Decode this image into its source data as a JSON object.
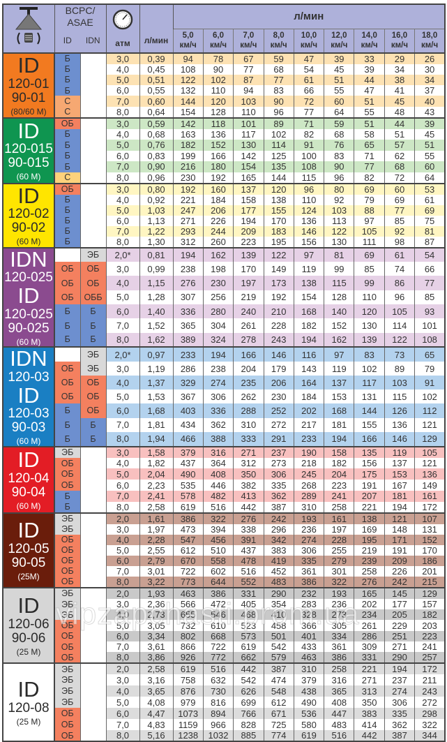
{
  "header": {
    "bcpc": "BCPC/",
    "asae": "ASAE",
    "id_col": "ID",
    "idn_col": "IDN",
    "atm": "атм",
    "lmin": "л/мин",
    "flow_title": "л/мин",
    "speeds": [
      "5,0",
      "6,0",
      "7,0",
      "8,0",
      "10,0",
      "12,0",
      "14,0",
      "16,0",
      "18,0"
    ],
    "speed_unit": "км/ч",
    "nozzle_icon": "nozzle-icon",
    "gauge_icon": "pressure-gauge-icon"
  },
  "class_colors": {
    "Б": "#6d8fcf",
    "С": "#f6a872",
    "ОБ": "#f4805f",
    "ОББ": "#f4805f",
    "ЭБ": "#d9d9d9",
    "": "#ffffff"
  },
  "groups": [
    {
      "color": "#f27a20",
      "tint": "#fde2b3",
      "text": "#2a2a2a",
      "c_color": "#f6a872",
      "label": [
        {
          "t": "ID",
          "s": "lg"
        },
        {
          "t": "120-01",
          "s": "md"
        },
        {
          "t": "90-01",
          "s": "md"
        },
        {
          "t": "(80/60 M)",
          "s": "sm"
        }
      ],
      "rows": [
        [
          "Б",
          "",
          "3,0",
          "0,39",
          94,
          78,
          67,
          59,
          47,
          39,
          33,
          29,
          26
        ],
        [
          "Б",
          "",
          "4,0",
          "0,45",
          108,
          90,
          77,
          68,
          54,
          45,
          39,
          34,
          30
        ],
        [
          "Б",
          "",
          "5,0",
          "0,51",
          122,
          102,
          87,
          77,
          61,
          51,
          44,
          38,
          34
        ],
        [
          "Б",
          "",
          "6,0",
          "0,55",
          132,
          110,
          94,
          83,
          66,
          55,
          47,
          41,
          37
        ],
        [
          "С",
          "",
          "7,0",
          "0,60",
          144,
          120,
          103,
          90,
          72,
          60,
          51,
          45,
          40
        ],
        [
          "С",
          "",
          "8,0",
          "0,64",
          154,
          128,
          110,
          96,
          77,
          64,
          55,
          48,
          43
        ]
      ]
    },
    {
      "color": "#0f9550",
      "tint": "#cde7c5",
      "text": "#ffffff",
      "c_color": "#fdd27c",
      "label": [
        {
          "t": "ID",
          "s": "lg"
        },
        {
          "t": "120-015",
          "s": "md"
        },
        {
          "t": "90-015",
          "s": "md"
        },
        {
          "t": "(60 M)",
          "s": "sm"
        }
      ],
      "rows": [
        [
          "ОБ",
          "",
          "3,0",
          "0,59",
          142,
          118,
          101,
          89,
          71,
          59,
          51,
          44,
          39
        ],
        [
          "Б",
          "",
          "4,0",
          "0,68",
          163,
          136,
          117,
          102,
          82,
          68,
          58,
          51,
          45
        ],
        [
          "Б",
          "",
          "5,0",
          "0,76",
          182,
          152,
          130,
          114,
          91,
          76,
          65,
          57,
          51
        ],
        [
          "Б",
          "",
          "6,0",
          "0,83",
          199,
          166,
          142,
          125,
          100,
          83,
          71,
          62,
          55
        ],
        [
          "Б",
          "",
          "7,0",
          "0,90",
          216,
          180,
          154,
          135,
          108,
          90,
          77,
          68,
          60
        ],
        [
          "С",
          "",
          "8,0",
          "0,96",
          230,
          192,
          165,
          144,
          115,
          96,
          82,
          72,
          64
        ]
      ]
    },
    {
      "color": "#ffe500",
      "tint": "#fff6c2",
      "text": "#2a2a2a",
      "label": [
        {
          "t": "ID",
          "s": "lg"
        },
        {
          "t": "120-02",
          "s": "md"
        },
        {
          "t": "90-02",
          "s": "md"
        },
        {
          "t": "(60 M)",
          "s": "sm"
        }
      ],
      "rows": [
        [
          "ОБ",
          "",
          "3,0",
          "0,80",
          192,
          160,
          137,
          120,
          96,
          80,
          69,
          60,
          53
        ],
        [
          "Б",
          "",
          "4,0",
          "0,92",
          221,
          184,
          158,
          138,
          110,
          92,
          79,
          69,
          61
        ],
        [
          "Б",
          "",
          "5,0",
          "1,03",
          247,
          206,
          177,
          155,
          124,
          103,
          88,
          77,
          69
        ],
        [
          "Б",
          "",
          "6,0",
          "1,13",
          271,
          226,
          194,
          170,
          136,
          113,
          97,
          85,
          75
        ],
        [
          "Б",
          "",
          "7,0",
          "1,22",
          293,
          244,
          209,
          183,
          146,
          122,
          105,
          92,
          81
        ],
        [
          "Б",
          "",
          "8,0",
          "1,30",
          312,
          260,
          223,
          195,
          156,
          130,
          111,
          98,
          87
        ]
      ]
    },
    {
      "color": "#8b4b8f",
      "tint": "#e6d1e6",
      "text": "#ffffff",
      "rowh": 18.5,
      "label": [
        {
          "t": "IDN",
          "s": "lg"
        },
        {
          "t": "120-025",
          "s": "md"
        },
        {
          "t": "ID",
          "s": "lg"
        },
        {
          "t": "120-025",
          "s": "md"
        },
        {
          "t": "90-025",
          "s": "md"
        },
        {
          "t": "(60 M)",
          "s": "sm"
        }
      ],
      "rows": [
        [
          "",
          "ЭБ",
          "2,0*",
          "0,81",
          194,
          162,
          139,
          122,
          97,
          81,
          69,
          61,
          54
        ],
        [
          "ОБ",
          "ОБ",
          "3,0",
          "0,99",
          238,
          198,
          170,
          149,
          119,
          99,
          85,
          74,
          66
        ],
        [
          "ОБ",
          "ОБ",
          "4,0",
          "1,15",
          276,
          230,
          197,
          173,
          138,
          115,
          99,
          86,
          77
        ],
        [
          "ОБ",
          "ОББ",
          "5,0",
          "1,28",
          307,
          256,
          219,
          192,
          154,
          128,
          110,
          96,
          85
        ],
        [
          "Б",
          "Б",
          "6,0",
          "1,40",
          336,
          280,
          240,
          210,
          168,
          140,
          120,
          105,
          93
        ],
        [
          "Б",
          "Б",
          "7,0",
          "1,52",
          365,
          304,
          261,
          228,
          182,
          152,
          130,
          114,
          101
        ],
        [
          "Б",
          "Б",
          "8,0",
          "1,62",
          389,
          324,
          278,
          243,
          194,
          162,
          139,
          122,
          108
        ]
      ]
    },
    {
      "color": "#1a7fc3",
      "tint": "#b3d2ee",
      "text": "#ffffff",
      "label": [
        {
          "t": "IDN",
          "s": "lg"
        },
        {
          "t": "120-03",
          "s": "md"
        },
        {
          "t": "ID",
          "s": "lg"
        },
        {
          "t": "120-03",
          "s": "md"
        },
        {
          "t": "90-03",
          "s": "md"
        },
        {
          "t": "(60 M)",
          "s": "sm"
        }
      ],
      "rows": [
        [
          "",
          "ЭБ",
          "2,0*",
          "0,97",
          233,
          194,
          166,
          146,
          116,
          97,
          83,
          73,
          65
        ],
        [
          "ОБ",
          "ЭБ",
          "3,0",
          "1,19",
          286,
          238,
          204,
          179,
          143,
          119,
          102,
          89,
          79
        ],
        [
          "ОБ",
          "ОБ",
          "4,0",
          "1,37",
          329,
          274,
          235,
          206,
          164,
          137,
          117,
          103,
          91
        ],
        [
          "ОБ",
          "ОБ",
          "5,0",
          "1,53",
          367,
          306,
          262,
          230,
          184,
          153,
          131,
          115,
          102
        ],
        [
          "Б",
          "ОБ",
          "6,0",
          "1,68",
          403,
          336,
          288,
          252,
          202,
          168,
          144,
          126,
          112
        ],
        [
          "Б",
          "Б",
          "7,0",
          "1,81",
          434,
          362,
          310,
          272,
          217,
          181,
          155,
          136,
          121
        ],
        [
          "Б",
          "Б",
          "8,0",
          "1,94",
          466,
          388,
          333,
          291,
          233,
          194,
          166,
          146,
          129
        ]
      ]
    },
    {
      "color": "#e31d25",
      "tint": "#f8c0bf",
      "text": "#ffffff",
      "label": [
        {
          "t": "ID",
          "s": "lg"
        },
        {
          "t": "120-04",
          "s": "md"
        },
        {
          "t": "90-04",
          "s": "md"
        },
        {
          "t": "(60 M)",
          "s": "sm"
        }
      ],
      "rows": [
        [
          "ЭБ",
          "",
          "3,0",
          "1,58",
          379,
          316,
          271,
          237,
          190,
          158,
          135,
          119,
          105
        ],
        [
          "ОБ",
          "",
          "4,0",
          "1,82",
          437,
          364,
          312,
          273,
          218,
          182,
          156,
          137,
          121
        ],
        [
          "ОБ",
          "",
          "5,0",
          "2,04",
          490,
          408,
          350,
          306,
          245,
          204,
          175,
          153,
          136
        ],
        [
          "ОБ",
          "",
          "6,0",
          "2,23",
          535,
          446,
          382,
          335,
          268,
          223,
          191,
          167,
          149
        ],
        [
          "Б",
          "",
          "7,0",
          "2,41",
          578,
          482,
          413,
          362,
          289,
          241,
          207,
          181,
          161
        ],
        [
          "Б",
          "",
          "8,0",
          "2,58",
          619,
          516,
          442,
          387,
          310,
          258,
          221,
          194,
          172
        ]
      ]
    },
    {
      "color": "#6a1d0b",
      "tint": "#c9a092",
      "text": "#ffffff",
      "label": [
        {
          "t": "ID",
          "s": "lg"
        },
        {
          "t": "120-05",
          "s": "md"
        },
        {
          "t": "90-05",
          "s": "md"
        },
        {
          "t": "(25M)",
          "s": "sm"
        }
      ],
      "rows": [
        [
          "ЭБ",
          "",
          "2,0",
          "1,61",
          386,
          322,
          276,
          242,
          193,
          161,
          138,
          121,
          107
        ],
        [
          "ЭБ",
          "",
          "3,0",
          "1,97",
          473,
          394,
          338,
          296,
          236,
          197,
          169,
          148,
          131
        ],
        [
          "ОБ",
          "",
          "4,0",
          "2,28",
          547,
          456,
          391,
          342,
          274,
          228,
          195,
          171,
          152
        ],
        [
          "ОБ",
          "",
          "5,0",
          "2,55",
          612,
          510,
          437,
          383,
          306,
          255,
          219,
          191,
          170
        ],
        [
          "ОБ",
          "",
          "6,0",
          "2,79",
          670,
          558,
          478,
          419,
          335,
          279,
          239,
          209,
          186
        ],
        [
          "ОБ",
          "",
          "7,0",
          "3,01",
          722,
          602,
          516,
          452,
          361,
          301,
          258,
          226,
          201
        ],
        [
          "ОБ",
          "",
          "8,0",
          "3,22",
          773,
          644,
          552,
          483,
          386,
          322,
          276,
          242,
          215
        ]
      ]
    },
    {
      "color": "#d6d6d6",
      "tint": "#c9c9c9",
      "text": "#2a2a2a",
      "label": [
        {
          "t": "ID",
          "s": "lg"
        },
        {
          "t": "120-06",
          "s": "md"
        },
        {
          "t": "90-06",
          "s": "md"
        },
        {
          "t": "(25 M)",
          "s": "sm"
        }
      ],
      "rows": [
        [
          "ЭБ",
          "",
          "2,0",
          "1,93",
          463,
          386,
          331,
          290,
          232,
          193,
          165,
          145,
          129
        ],
        [
          "ЭБ",
          "",
          "3,0",
          "2,36",
          566,
          472,
          405,
          354,
          283,
          236,
          202,
          177,
          157
        ],
        [
          "ЭБ",
          "",
          "4,0",
          "2,73",
          655,
          546,
          468,
          410,
          328,
          273,
          234,
          205,
          182
        ],
        [
          "ОБ",
          "",
          "5,0",
          "3,05",
          732,
          610,
          523,
          458,
          366,
          305,
          261,
          229,
          203
        ],
        [
          "ОБ",
          "",
          "6,0",
          "3,34",
          802,
          668,
          573,
          501,
          401,
          334,
          286,
          251,
          223
        ],
        [
          "ОБ",
          "",
          "7,0",
          "3,61",
          866,
          722,
          619,
          542,
          433,
          361,
          309,
          271,
          241
        ],
        [
          "ОБ",
          "",
          "8,0",
          "3,86",
          926,
          772,
          662,
          579,
          463,
          386,
          331,
          290,
          257
        ]
      ]
    },
    {
      "color": "#ffffff",
      "tint": "#dcdcdc",
      "text": "#2a2a2a",
      "rowh": 16,
      "label": [
        {
          "t": "ID",
          "s": "lg"
        },
        {
          "t": "120-08",
          "s": "md"
        },
        {
          "t": "(25 M)",
          "s": "sm"
        }
      ],
      "rows": [
        [
          "ЭБ",
          "",
          "2,0",
          "2,58",
          619,
          516,
          442,
          387,
          310,
          258,
          221,
          194,
          172
        ],
        [
          "ЭБ",
          "",
          "3,0",
          "3,16",
          758,
          632,
          542,
          474,
          379,
          316,
          271,
          237,
          211
        ],
        [
          "ЭБ",
          "",
          "4,0",
          "3,65",
          876,
          730,
          626,
          548,
          438,
          365,
          313,
          274,
          243
        ],
        [
          "ЭБ",
          "",
          "5,0",
          "4,08",
          979,
          816,
          699,
          612,
          490,
          408,
          350,
          306,
          272
        ],
        [
          "ОБ",
          "",
          "6,0",
          "4,47",
          1073,
          894,
          766,
          671,
          536,
          447,
          383,
          335,
          298
        ],
        [
          "ОБ",
          "",
          "7,0",
          "4,83",
          1159,
          966,
          828,
          725,
          580,
          483,
          414,
          362,
          322
        ],
        [
          "ОБ",
          "",
          "8,0",
          "5,16",
          1238,
          1032,
          885,
          774,
          619,
          516,
          442,
          387,
          344
        ]
      ]
    }
  ],
  "watermark": "vipzapchasti.prom.ua"
}
